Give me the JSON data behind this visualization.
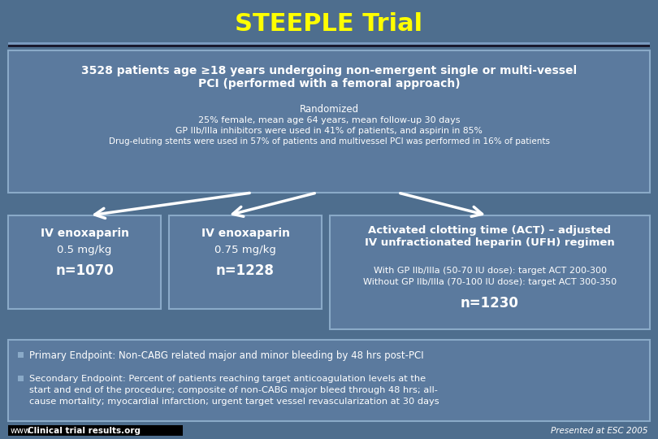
{
  "title": "STEEPLE Trial",
  "title_color": "#FFFF00",
  "slide_bg": "#4E6E8E",
  "box_bg": "#5B7A9E",
  "box_edge": "#8AAAC8",
  "bar_color": "#1A1A2E",
  "bar_top_color": "#7A9ABE",
  "white": "#FFFFFF",
  "top_box_text_bold": "3528 patients age ≥18 years undergoing non-emergent single or multi-vessel\nPCI (performed with a femoral approach)",
  "top_box_sub1": "Randomized",
  "top_box_sub2": "25% female, mean age 64 years, mean follow-up 30 days",
  "top_box_sub3": "GP IIb/IIIa inhibitors were used in 41% of patients, and aspirin in 85%",
  "top_box_sub4": "Drug-eluting stents were used in 57% of patients and multivessel PCI was performed in 16% of patients",
  "arm1_bold": "IV enoxaparin",
  "arm1_sub": "0.5 mg/kg",
  "arm1_n": "n=1070",
  "arm2_bold": "IV enoxaparin",
  "arm2_sub": "0.75 mg/kg",
  "arm2_n": "n=1228",
  "arm3_bold": "Activated clotting time (ACT) – adjusted\nIV unfractionated heparin (UFH) regimen",
  "arm3_sub1": "With GP IIb/IIIa (50-70 IU dose): target ACT 200-300",
  "arm3_sub2": "Without GP IIb/IIIa (70-100 IU dose): target ACT 300-350",
  "arm3_n": "n=1230",
  "endpoint1": "Primary Endpoint: Non-CABG related major and minor bleeding by 48 hrs post-PCI",
  "endpoint2": "Secondary Endpoint: Percent of patients reaching target anticoagulation levels at the\nstart and end of the procedure; composite of non-CABG major bleed through 48 hrs; all-\ncause mortality; myocardial infarction; urgent target vessel revascularization at 30 days",
  "footer_left_plain": "www.",
  "footer_left_bold": "Clinical trial results.org",
  "footer_right": "Presented at ESC 2005"
}
